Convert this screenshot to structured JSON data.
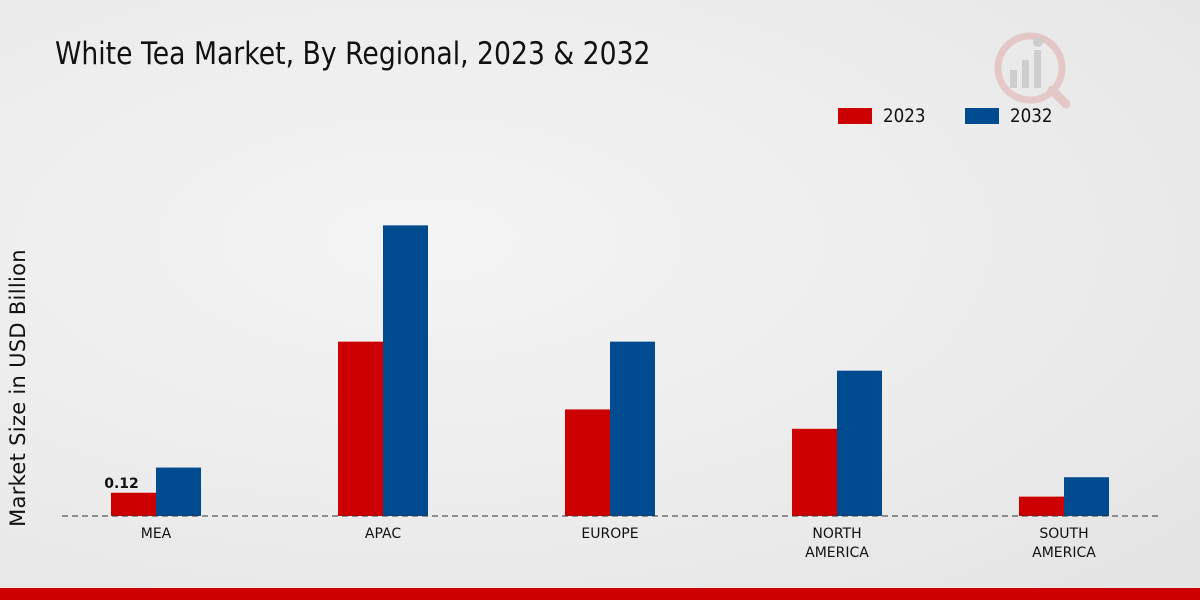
{
  "chart_data": {
    "type": "bar",
    "title": "White Tea Market, By Regional, 2023 & 2032",
    "xlabel": "",
    "ylabel": "Market Size in USD Billion",
    "ylim": [
      0,
      1.6
    ],
    "legend_position": "top-right",
    "grid": false,
    "categories": [
      "MEA",
      "APAC",
      "EUROPE",
      "NORTH AMERICA",
      "SOUTH AMERICA"
    ],
    "category_lines": [
      [
        "MEA"
      ],
      [
        "APAC"
      ],
      [
        "EUROPE"
      ],
      [
        "NORTH",
        "AMERICA"
      ],
      [
        "SOUTH",
        "AMERICA"
      ]
    ],
    "series": [
      {
        "name": "2023",
        "color": "#cc0000",
        "values": [
          0.12,
          0.9,
          0.55,
          0.45,
          0.1
        ]
      },
      {
        "name": "2032",
        "color": "#004a8f",
        "values": [
          0.25,
          1.5,
          0.9,
          0.75,
          0.2
        ]
      }
    ],
    "annotations": [
      {
        "series": 0,
        "category": 0,
        "label": "0.12"
      }
    ]
  }
}
